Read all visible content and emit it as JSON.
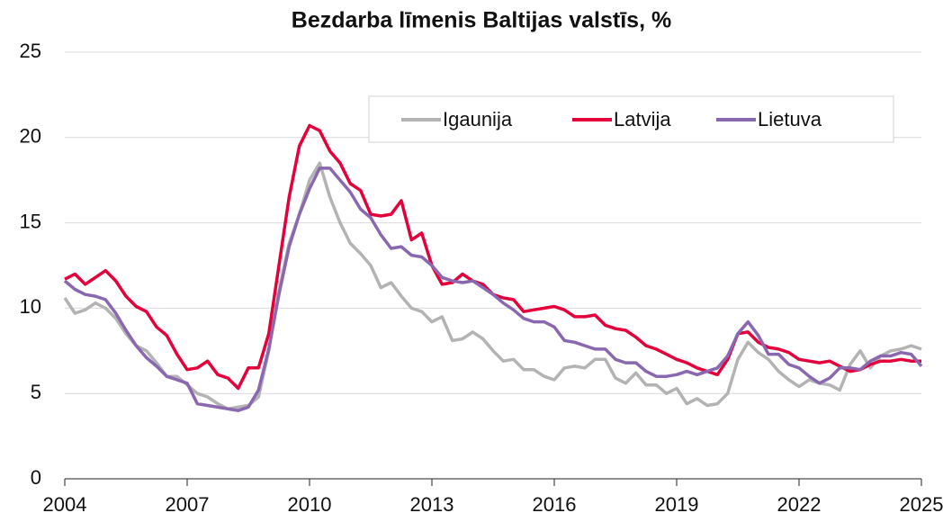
{
  "chart_data": {
    "type": "line",
    "title": "Bezdarba līmenis Baltijas valstīs, %",
    "x": [
      2004,
      2004.25,
      2004.5,
      2004.75,
      2005,
      2005.25,
      2005.5,
      2005.75,
      2006,
      2006.25,
      2006.5,
      2006.75,
      2007,
      2007.25,
      2007.5,
      2007.75,
      2008,
      2008.25,
      2008.5,
      2008.75,
      2009,
      2009.25,
      2009.5,
      2009.75,
      2010,
      2010.25,
      2010.5,
      2010.75,
      2011,
      2011.25,
      2011.5,
      2011.75,
      2012,
      2012.25,
      2012.5,
      2012.75,
      2013,
      2013.25,
      2013.5,
      2013.75,
      2014,
      2014.25,
      2014.5,
      2014.75,
      2015,
      2015.25,
      2015.5,
      2015.75,
      2016,
      2016.25,
      2016.5,
      2016.75,
      2017,
      2017.25,
      2017.5,
      2017.75,
      2018,
      2018.25,
      2018.5,
      2018.75,
      2019,
      2019.25,
      2019.5,
      2019.75,
      2020,
      2020.25,
      2020.5,
      2020.75,
      2021,
      2021.25,
      2021.5,
      2021.75,
      2022,
      2022.25,
      2022.5,
      2022.75,
      2023,
      2023.25,
      2023.5,
      2023.75,
      2024,
      2024.25,
      2024.5,
      2024.75,
      2025
    ],
    "series": [
      {
        "name": "Igaunija",
        "color": "#b3b3b3",
        "values": [
          10.6,
          9.7,
          9.9,
          10.3,
          10.0,
          9.4,
          8.5,
          7.8,
          7.5,
          6.8,
          6.0,
          6.0,
          5.5,
          5.0,
          4.8,
          4.4,
          4.1,
          4.2,
          4.3,
          4.8,
          7.5,
          11.0,
          13.8,
          15.5,
          17.5,
          18.5,
          16.5,
          15.0,
          13.8,
          13.2,
          12.5,
          11.2,
          11.5,
          10.7,
          10.0,
          9.8,
          9.2,
          9.5,
          8.1,
          8.2,
          8.6,
          8.2,
          7.5,
          6.9,
          7.0,
          6.4,
          6.4,
          6.0,
          5.8,
          6.5,
          6.6,
          6.5,
          7.0,
          7.0,
          5.9,
          5.6,
          6.2,
          5.5,
          5.5,
          5.0,
          5.3,
          4.4,
          4.7,
          4.3,
          4.4,
          5.0,
          7.0,
          8.0,
          7.4,
          7.0,
          6.3,
          5.8,
          5.4,
          5.8,
          5.6,
          5.5,
          5.2,
          6.7,
          7.5,
          6.5,
          7.2,
          7.5,
          7.6,
          7.8,
          7.6
        ]
      },
      {
        "name": "Latvija",
        "color": "#e4003a",
        "values": [
          11.7,
          12.0,
          11.4,
          11.8,
          12.2,
          11.6,
          10.7,
          10.1,
          9.8,
          8.9,
          8.4,
          7.3,
          6.4,
          6.5,
          6.9,
          6.1,
          5.9,
          5.3,
          6.5,
          6.5,
          8.5,
          12.5,
          16.5,
          19.5,
          20.7,
          20.4,
          19.2,
          18.5,
          17.3,
          16.9,
          15.5,
          15.4,
          15.5,
          16.3,
          14.0,
          14.4,
          12.5,
          11.4,
          11.5,
          12.0,
          11.6,
          11.4,
          10.8,
          10.6,
          10.5,
          9.8,
          9.9,
          10.0,
          10.1,
          9.9,
          9.5,
          9.5,
          9.6,
          9.0,
          8.8,
          8.7,
          8.3,
          7.8,
          7.6,
          7.3,
          7.0,
          6.8,
          6.5,
          6.3,
          6.1,
          7.0,
          8.5,
          8.6,
          8.0,
          7.7,
          7.6,
          7.4,
          7.0,
          6.9,
          6.8,
          6.9,
          6.6,
          6.3,
          6.4,
          6.7,
          6.9,
          6.9,
          7.0,
          6.9,
          6.9
        ]
      },
      {
        "name": "Lietuva",
        "color": "#8a68b0",
        "values": [
          11.6,
          11.1,
          10.8,
          10.7,
          10.5,
          9.7,
          8.7,
          7.8,
          7.1,
          6.6,
          6.0,
          5.8,
          5.6,
          4.4,
          4.3,
          4.2,
          4.1,
          4.0,
          4.2,
          5.2,
          7.6,
          10.8,
          13.6,
          15.5,
          17.0,
          18.2,
          18.2,
          17.5,
          16.8,
          15.8,
          15.3,
          14.3,
          13.5,
          13.6,
          13.1,
          13.0,
          12.5,
          11.8,
          11.6,
          11.5,
          11.6,
          11.2,
          10.8,
          10.3,
          9.9,
          9.4,
          9.2,
          9.2,
          8.9,
          8.1,
          8.0,
          7.8,
          7.6,
          7.6,
          7.0,
          6.8,
          6.8,
          6.3,
          6.0,
          6.0,
          6.1,
          6.3,
          6.1,
          6.3,
          6.5,
          7.2,
          8.5,
          9.2,
          8.4,
          7.3,
          7.3,
          6.7,
          6.5,
          6.0,
          5.6,
          5.9,
          6.5,
          6.5,
          6.4,
          6.9,
          7.2,
          7.2,
          7.4,
          7.3,
          6.6
        ]
      }
    ],
    "xlim": [
      2004,
      2025
    ],
    "xticks": [
      2004,
      2007,
      2010,
      2013,
      2016,
      2019,
      2022,
      2025
    ],
    "ylim": [
      0,
      25
    ],
    "yticks": [
      0,
      5,
      10,
      15,
      20,
      25
    ],
    "grid": true,
    "legend": "top-right"
  }
}
